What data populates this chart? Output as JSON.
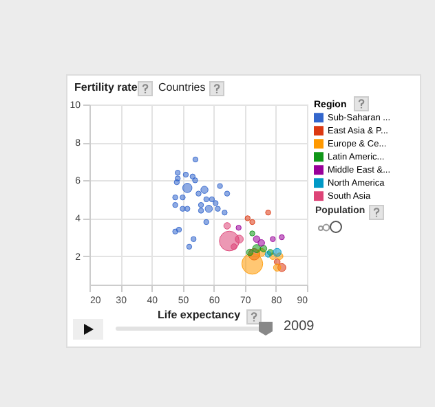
{
  "chart_data": {
    "type": "bubble",
    "ylabel": "Fertility rate",
    "xlabel": "Life expectancy",
    "legend_title": "Region",
    "annotations": [
      "Countries",
      "Population",
      "2009"
    ],
    "xlim": [
      20,
      90
    ],
    "xticks": [
      20,
      30,
      40,
      50,
      60,
      70,
      80,
      90
    ],
    "ylim": [
      0.5,
      10
    ],
    "yticks": [
      2,
      4,
      6,
      8,
      10
    ],
    "grid": true,
    "legend": "right",
    "marker": "circle",
    "series": [
      {
        "name": "Sub-Saharan ...",
        "color": "#3366cc",
        "x": [
          54.1,
          48.4,
          48.4,
          51,
          53.2,
          48.1,
          51.5,
          54,
          55.1,
          57,
          50,
          47.6,
          47.6,
          57.6,
          59.4,
          55.9,
          51.5,
          50,
          58.4,
          55.9,
          61.3,
          57.6,
          48.8,
          47.6,
          53.5,
          52.1,
          60.6,
          64.3,
          62,
          63.5
        ],
        "values": [
          7.1,
          6.4,
          6.1,
          6.3,
          6.2,
          5.9,
          5.6,
          6.0,
          5.3,
          5.5,
          5.1,
          5.1,
          4.7,
          5.0,
          5.0,
          4.7,
          4.5,
          4.5,
          4.5,
          4.4,
          4.5,
          3.8,
          3.4,
          3.3,
          2.9,
          2.5,
          4.8,
          5.3,
          5.7,
          4.3
        ],
        "sizes": [
          0.06,
          0.06,
          0.06,
          0.06,
          0.06,
          0.06,
          0.2,
          0.06,
          0.06,
          0.12,
          0.06,
          0.06,
          0.06,
          0.06,
          0.06,
          0.06,
          0.06,
          0.06,
          0.12,
          0.06,
          0.06,
          0.06,
          0.06,
          0.06,
          0.06,
          0.06,
          0.06,
          0.06,
          0.06,
          0.06
        ]
      },
      {
        "name": "East Asia & P...",
        "color": "#dc3912",
        "x": [
          70.9,
          72.4,
          77.5,
          73,
          81.9,
          80.4
        ],
        "values": [
          4.0,
          3.8,
          4.3,
          2.1,
          1.4,
          1.7
        ],
        "sizes": [
          0.06,
          0.06,
          0.06,
          0.3,
          0.15,
          0.08
        ]
      },
      {
        "name": "Europe & Ce...",
        "color": "#ff9900",
        "x": [
          72.4,
          75.3,
          79,
          81.2,
          80.4
        ],
        "values": [
          1.6,
          2.2,
          2.0,
          2.0,
          1.4
        ],
        "sizes": [
          1,
          0.15,
          0.1,
          0.1,
          0.12
        ]
      },
      {
        "name": "Latin Americ...",
        "color": "#109618",
        "x": [
          71.6,
          73.8,
          76,
          78.2,
          72.4
        ],
        "values": [
          2.2,
          2.4,
          2.4,
          2.2,
          3.2
        ],
        "sizes": [
          0.1,
          0.15,
          0.1,
          0.08,
          0.06
        ]
      },
      {
        "name": "Middle East &...",
        "color": "#990099",
        "x": [
          73.8,
          75.3,
          79,
          68,
          81.9
        ],
        "values": [
          2.9,
          2.7,
          2.9,
          3.5,
          3.0
        ],
        "sizes": [
          0.1,
          0.1,
          0.06,
          0.06,
          0.06
        ]
      },
      {
        "name": "North America",
        "color": "#0099c6",
        "x": [
          80.4,
          77.5
        ],
        "values": [
          2.2,
          2.1
        ],
        "sizes": [
          0.15,
          0.08
        ]
      },
      {
        "name": "South Asia",
        "color": "#dd4477",
        "x": [
          65,
          68.2,
          64.3,
          66.5
        ],
        "values": [
          2.8,
          2.9,
          3.6,
          2.5
        ],
        "sizes": [
          0.9,
          0.15,
          0.1,
          0.08
        ]
      }
    ]
  }
}
